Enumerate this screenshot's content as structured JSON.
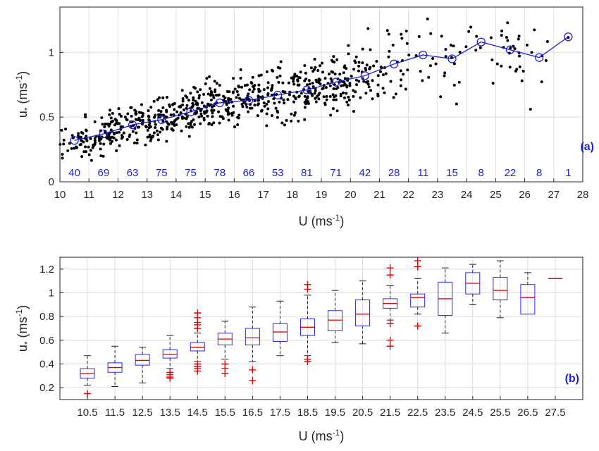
{
  "colors": {
    "scatter_points": "#000000",
    "mean_line": "#1f1fd6",
    "count_labels": "#1f1fd6",
    "panel_labels": "#1f1fd6",
    "box_outline": "#2a2ae0",
    "median": "#e00000",
    "outlier": "#e00000",
    "grid": "#dcdcdc"
  },
  "chart_data": [
    {
      "panel": "a",
      "type": "scatter",
      "panel_label": "(a)",
      "xlabel": "U (ms",
      "xlabel_sup": "-1",
      "xlabel_end": ")",
      "ylabel": "u",
      "ylabel_sub": "*",
      "ylabel_unit": " (ms",
      "ylabel_sup": "-1",
      "ylabel_end": ")",
      "xlim": [
        10,
        28
      ],
      "ylim": [
        0,
        1.35
      ],
      "xticks": [
        10,
        11,
        12,
        13,
        14,
        15,
        16,
        17,
        18,
        19,
        20,
        21,
        22,
        23,
        24,
        25,
        26,
        27,
        28
      ],
      "yticks": [
        0,
        0.5,
        1
      ],
      "ytick_labels": [
        "0",
        "0.5",
        "1"
      ],
      "grid": true,
      "bin_centers": [
        10.5,
        11.5,
        12.5,
        13.5,
        14.5,
        15.5,
        16.5,
        17.5,
        18.5,
        19.5,
        20.5,
        21.5,
        22.5,
        23.5,
        24.5,
        25.5,
        26.5,
        27.5
      ],
      "bin_counts": [
        "40",
        "69",
        "63",
        "75",
        "75",
        "78",
        "66",
        "53",
        "81",
        "71",
        "42",
        "28",
        "11",
        "15",
        "8",
        "22",
        "8",
        "1"
      ],
      "bin_means": [
        0.32,
        0.37,
        0.44,
        0.48,
        0.54,
        0.61,
        0.63,
        0.67,
        0.71,
        0.77,
        0.82,
        0.91,
        0.98,
        0.95,
        1.08,
        1.02,
        0.96,
        1.12
      ],
      "bin_spread": [
        0.07,
        0.07,
        0.07,
        0.07,
        0.08,
        0.08,
        0.1,
        0.11,
        0.11,
        0.11,
        0.13,
        0.13,
        0.12,
        0.15,
        0.12,
        0.12,
        0.14,
        0.01
      ]
    },
    {
      "panel": "b",
      "type": "box",
      "panel_label": "(b)",
      "xlabel": "U (ms",
      "xlabel_sup": "-1",
      "xlabel_end": ")",
      "ylabel": "u",
      "ylabel_sub": "*",
      "ylabel_unit": " (ms",
      "ylabel_sup": "-1",
      "ylabel_end": ")",
      "categories": [
        "10.5",
        "11.5",
        "12.5",
        "13.5",
        "14.5",
        "15.5",
        "16.5",
        "17.5",
        "18.5",
        "19.5",
        "20.5",
        "21.5",
        "22.5",
        "23.5",
        "24.5",
        "25.5",
        "26.5",
        "27.5"
      ],
      "ylim": [
        0.1,
        1.3
      ],
      "yticks": [
        0.2,
        0.4,
        0.6,
        0.8,
        1,
        1.2
      ],
      "ytick_labels": [
        "0.2",
        "0.4",
        "0.6",
        "0.8",
        "1",
        "1.2"
      ],
      "boxes": [
        {
          "whisker_low": 0.22,
          "q1": 0.28,
          "median": 0.32,
          "q3": 0.36,
          "whisker_high": 0.47,
          "outliers": [
            0.15
          ]
        },
        {
          "whisker_low": 0.21,
          "q1": 0.33,
          "median": 0.37,
          "q3": 0.41,
          "whisker_high": 0.55,
          "outliers": []
        },
        {
          "whisker_low": 0.24,
          "q1": 0.39,
          "median": 0.43,
          "q3": 0.48,
          "whisker_high": 0.54,
          "outliers": []
        },
        {
          "whisker_low": 0.36,
          "q1": 0.45,
          "median": 0.48,
          "q3": 0.52,
          "whisker_high": 0.64,
          "outliers": [
            0.33,
            0.31,
            0.29,
            0.28
          ]
        },
        {
          "whisker_low": 0.42,
          "q1": 0.51,
          "median": 0.54,
          "q3": 0.58,
          "whisker_high": 0.66,
          "outliers": [
            0.83,
            0.79,
            0.75,
            0.73,
            0.7,
            0.4,
            0.38,
            0.36,
            0.34
          ]
        },
        {
          "whisker_low": 0.44,
          "q1": 0.56,
          "median": 0.61,
          "q3": 0.66,
          "whisker_high": 0.76,
          "outliers": [
            0.4,
            0.36,
            0.32
          ]
        },
        {
          "whisker_low": 0.42,
          "q1": 0.56,
          "median": 0.62,
          "q3": 0.7,
          "whisker_high": 0.88,
          "outliers": [
            0.35,
            0.26
          ]
        },
        {
          "whisker_low": 0.47,
          "q1": 0.59,
          "median": 0.67,
          "q3": 0.74,
          "whisker_high": 0.93,
          "outliers": []
        },
        {
          "whisker_low": 0.47,
          "q1": 0.64,
          "median": 0.71,
          "q3": 0.78,
          "whisker_high": 0.98,
          "outliers": [
            1.07,
            1.03,
            0.44,
            0.42
          ]
        },
        {
          "whisker_low": 0.58,
          "q1": 0.68,
          "median": 0.77,
          "q3": 0.85,
          "whisker_high": 1.02,
          "outliers": []
        },
        {
          "whisker_low": 0.57,
          "q1": 0.72,
          "median": 0.82,
          "q3": 0.94,
          "whisker_high": 1.1,
          "outliers": []
        },
        {
          "whisker_low": 0.77,
          "q1": 0.87,
          "median": 0.91,
          "q3": 0.95,
          "whisker_high": 1.06,
          "outliers": [
            1.21,
            1.15,
            0.74,
            0.6,
            0.55
          ]
        },
        {
          "whisker_low": 0.82,
          "q1": 0.88,
          "median": 0.96,
          "q3": 0.99,
          "whisker_high": 1.12,
          "outliers": [
            1.27,
            1.22,
            0.72
          ]
        },
        {
          "whisker_low": 0.66,
          "q1": 0.81,
          "median": 0.95,
          "q3": 1.09,
          "whisker_high": 1.21,
          "outliers": []
        },
        {
          "whisker_low": 0.9,
          "q1": 0.99,
          "median": 1.08,
          "q3": 1.17,
          "whisker_high": 1.24,
          "outliers": []
        },
        {
          "whisker_low": 0.79,
          "q1": 0.94,
          "median": 1.02,
          "q3": 1.13,
          "whisker_high": 1.27,
          "outliers": []
        },
        {
          "whisker_low": 0.82,
          "q1": 0.82,
          "median": 0.96,
          "q3": 1.07,
          "whisker_high": 1.17,
          "outliers": []
        },
        {
          "whisker_low": 1.12,
          "q1": 1.12,
          "median": 1.12,
          "q3": 1.12,
          "whisker_high": 1.12,
          "outliers": []
        }
      ]
    }
  ]
}
